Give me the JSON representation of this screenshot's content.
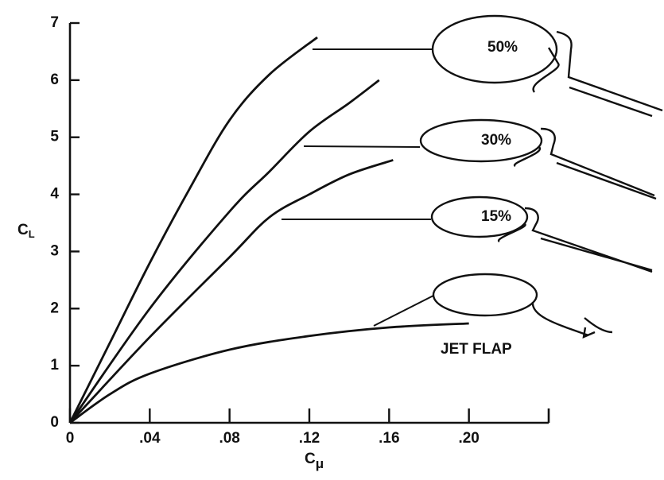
{
  "chart_data": {
    "type": "line",
    "x_label": {
      "text": "C",
      "subscript": "μ"
    },
    "y_label": {
      "text": "C",
      "subscript": "L"
    },
    "xlim": [
      0,
      0.24
    ],
    "ylim": [
      0,
      7
    ],
    "xticks": [
      0,
      {
        "value": 0.04,
        "label": ".04"
      },
      {
        "value": 0.08,
        "label": ".08"
      },
      {
        "value": 0.12,
        "label": ".12"
      },
      {
        "value": 0.16,
        "label": ".16"
      },
      {
        "value": 0.2,
        "label": ".20"
      }
    ],
    "yticks": [
      0,
      1,
      2,
      3,
      4,
      5,
      6,
      7
    ],
    "color": "#111111",
    "series": [
      {
        "name": "50%",
        "x": [
          0,
          0.02,
          0.04,
          0.06,
          0.08,
          0.1,
          0.124
        ],
        "values": [
          0,
          1.4,
          2.8,
          4.1,
          5.3,
          6.1,
          6.75
        ]
      },
      {
        "name": "30%",
        "x": [
          0,
          0.04,
          0.08,
          0.1,
          0.12,
          0.14,
          0.155
        ],
        "values": [
          0,
          2.0,
          3.7,
          4.4,
          5.1,
          5.6,
          6.0
        ]
      },
      {
        "name": "15%",
        "x": [
          0,
          0.04,
          0.08,
          0.1,
          0.12,
          0.14,
          0.162
        ],
        "values": [
          0,
          1.5,
          2.9,
          3.6,
          4.0,
          4.35,
          4.6
        ]
      },
      {
        "name": "JET FLAP",
        "x": [
          0,
          0.02,
          0.04,
          0.08,
          0.12,
          0.16,
          0.2
        ],
        "values": [
          0,
          0.5,
          0.86,
          1.28,
          1.52,
          1.67,
          1.74
        ]
      }
    ]
  }
}
